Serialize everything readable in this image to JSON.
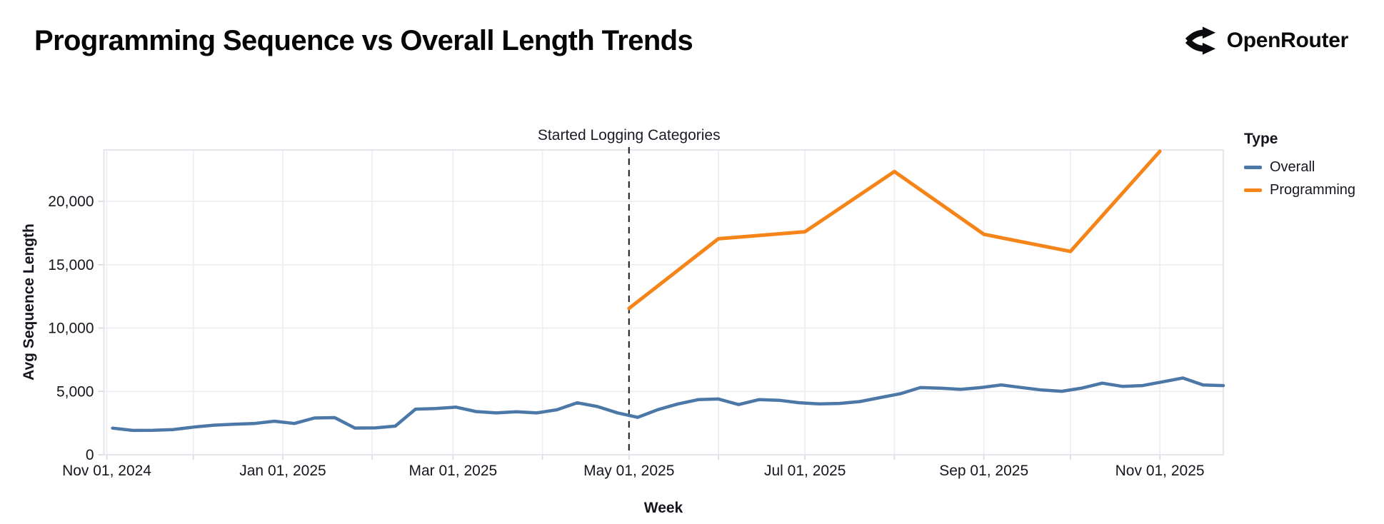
{
  "header": {
    "title": "Programming Sequence vs Overall Length Trends",
    "logo_text": "OpenRouter"
  },
  "chart_data": {
    "type": "line",
    "title": "Programming Sequence vs Overall Length Trends",
    "xlabel": "Week",
    "ylabel": "Avg Sequence Length",
    "grid": true,
    "x_domain": [
      "2024-10-31",
      "2025-11-23"
    ],
    "ylim": [
      0,
      24060
    ],
    "yticks": [
      {
        "v": 0,
        "label": "0"
      },
      {
        "v": 5000,
        "label": "5,000"
      },
      {
        "v": 10000,
        "label": "10,000"
      },
      {
        "v": 15000,
        "label": "15,000"
      },
      {
        "v": 20000,
        "label": "20,000"
      }
    ],
    "xticks": [
      {
        "d": "2024-11-01",
        "label": "Nov 01, 2024"
      },
      {
        "d": "2024-12-01"
      },
      {
        "d": "2025-01-01",
        "label": "Jan 01, 2025"
      },
      {
        "d": "2025-02-01"
      },
      {
        "d": "2025-03-01",
        "label": "Mar 01, 2025"
      },
      {
        "d": "2025-04-01"
      },
      {
        "d": "2025-05-01",
        "label": "May 01, 2025"
      },
      {
        "d": "2025-06-01"
      },
      {
        "d": "2025-07-01",
        "label": "Jul 01, 2025"
      },
      {
        "d": "2025-08-01"
      },
      {
        "d": "2025-09-01",
        "label": "Sep 01, 2025"
      },
      {
        "d": "2025-10-01"
      },
      {
        "d": "2025-11-01",
        "label": "Nov 01, 2025"
      }
    ],
    "annotation": {
      "label": "Started Logging Categories",
      "date": "2025-05-01"
    },
    "legend": {
      "title": "Type",
      "position": "right"
    },
    "series": [
      {
        "name": "Overall",
        "color": "#4c78a8",
        "width": 4.5,
        "points": [
          [
            "2024-11-03",
            2100
          ],
          [
            "2024-11-10",
            1920
          ],
          [
            "2024-11-17",
            1930
          ],
          [
            "2024-11-24",
            1990
          ],
          [
            "2024-12-01",
            2180
          ],
          [
            "2024-12-08",
            2330
          ],
          [
            "2024-12-15",
            2410
          ],
          [
            "2024-12-22",
            2460
          ],
          [
            "2024-12-29",
            2650
          ],
          [
            "2025-01-05",
            2470
          ],
          [
            "2025-01-12",
            2900
          ],
          [
            "2025-01-19",
            2930
          ],
          [
            "2025-01-26",
            2110
          ],
          [
            "2025-02-02",
            2120
          ],
          [
            "2025-02-09",
            2260
          ],
          [
            "2025-02-16",
            3600
          ],
          [
            "2025-02-23",
            3650
          ],
          [
            "2025-03-02",
            3760
          ],
          [
            "2025-03-09",
            3410
          ],
          [
            "2025-03-16",
            3300
          ],
          [
            "2025-03-23",
            3390
          ],
          [
            "2025-03-30",
            3300
          ],
          [
            "2025-04-06",
            3550
          ],
          [
            "2025-04-13",
            4100
          ],
          [
            "2025-04-20",
            3810
          ],
          [
            "2025-04-27",
            3310
          ],
          [
            "2025-05-04",
            2950
          ],
          [
            "2025-05-11",
            3560
          ],
          [
            "2025-05-18",
            4010
          ],
          [
            "2025-05-25",
            4350
          ],
          [
            "2025-06-01",
            4400
          ],
          [
            "2025-06-08",
            3960
          ],
          [
            "2025-06-15",
            4350
          ],
          [
            "2025-06-22",
            4300
          ],
          [
            "2025-06-29",
            4110
          ],
          [
            "2025-07-06",
            4010
          ],
          [
            "2025-07-13",
            4050
          ],
          [
            "2025-07-20",
            4200
          ],
          [
            "2025-07-27",
            4510
          ],
          [
            "2025-08-03",
            4810
          ],
          [
            "2025-08-10",
            5300
          ],
          [
            "2025-08-17",
            5250
          ],
          [
            "2025-08-24",
            5160
          ],
          [
            "2025-08-31",
            5300
          ],
          [
            "2025-09-07",
            5510
          ],
          [
            "2025-09-14",
            5310
          ],
          [
            "2025-09-21",
            5110
          ],
          [
            "2025-09-28",
            5010
          ],
          [
            "2025-10-05",
            5260
          ],
          [
            "2025-10-12",
            5650
          ],
          [
            "2025-10-19",
            5400
          ],
          [
            "2025-10-26",
            5460
          ],
          [
            "2025-11-02",
            5760
          ],
          [
            "2025-11-09",
            6060
          ],
          [
            "2025-11-16",
            5510
          ],
          [
            "2025-11-23",
            5460
          ]
        ]
      },
      {
        "name": "Programming",
        "color": "#f58518",
        "width": 5,
        "points": [
          [
            "2025-05-01",
            11550
          ],
          [
            "2025-06-01",
            17050
          ],
          [
            "2025-07-01",
            17600
          ],
          [
            "2025-08-01",
            22350
          ],
          [
            "2025-09-01",
            17400
          ],
          [
            "2025-10-01",
            16050
          ],
          [
            "2025-11-01",
            23950
          ]
        ]
      }
    ]
  }
}
